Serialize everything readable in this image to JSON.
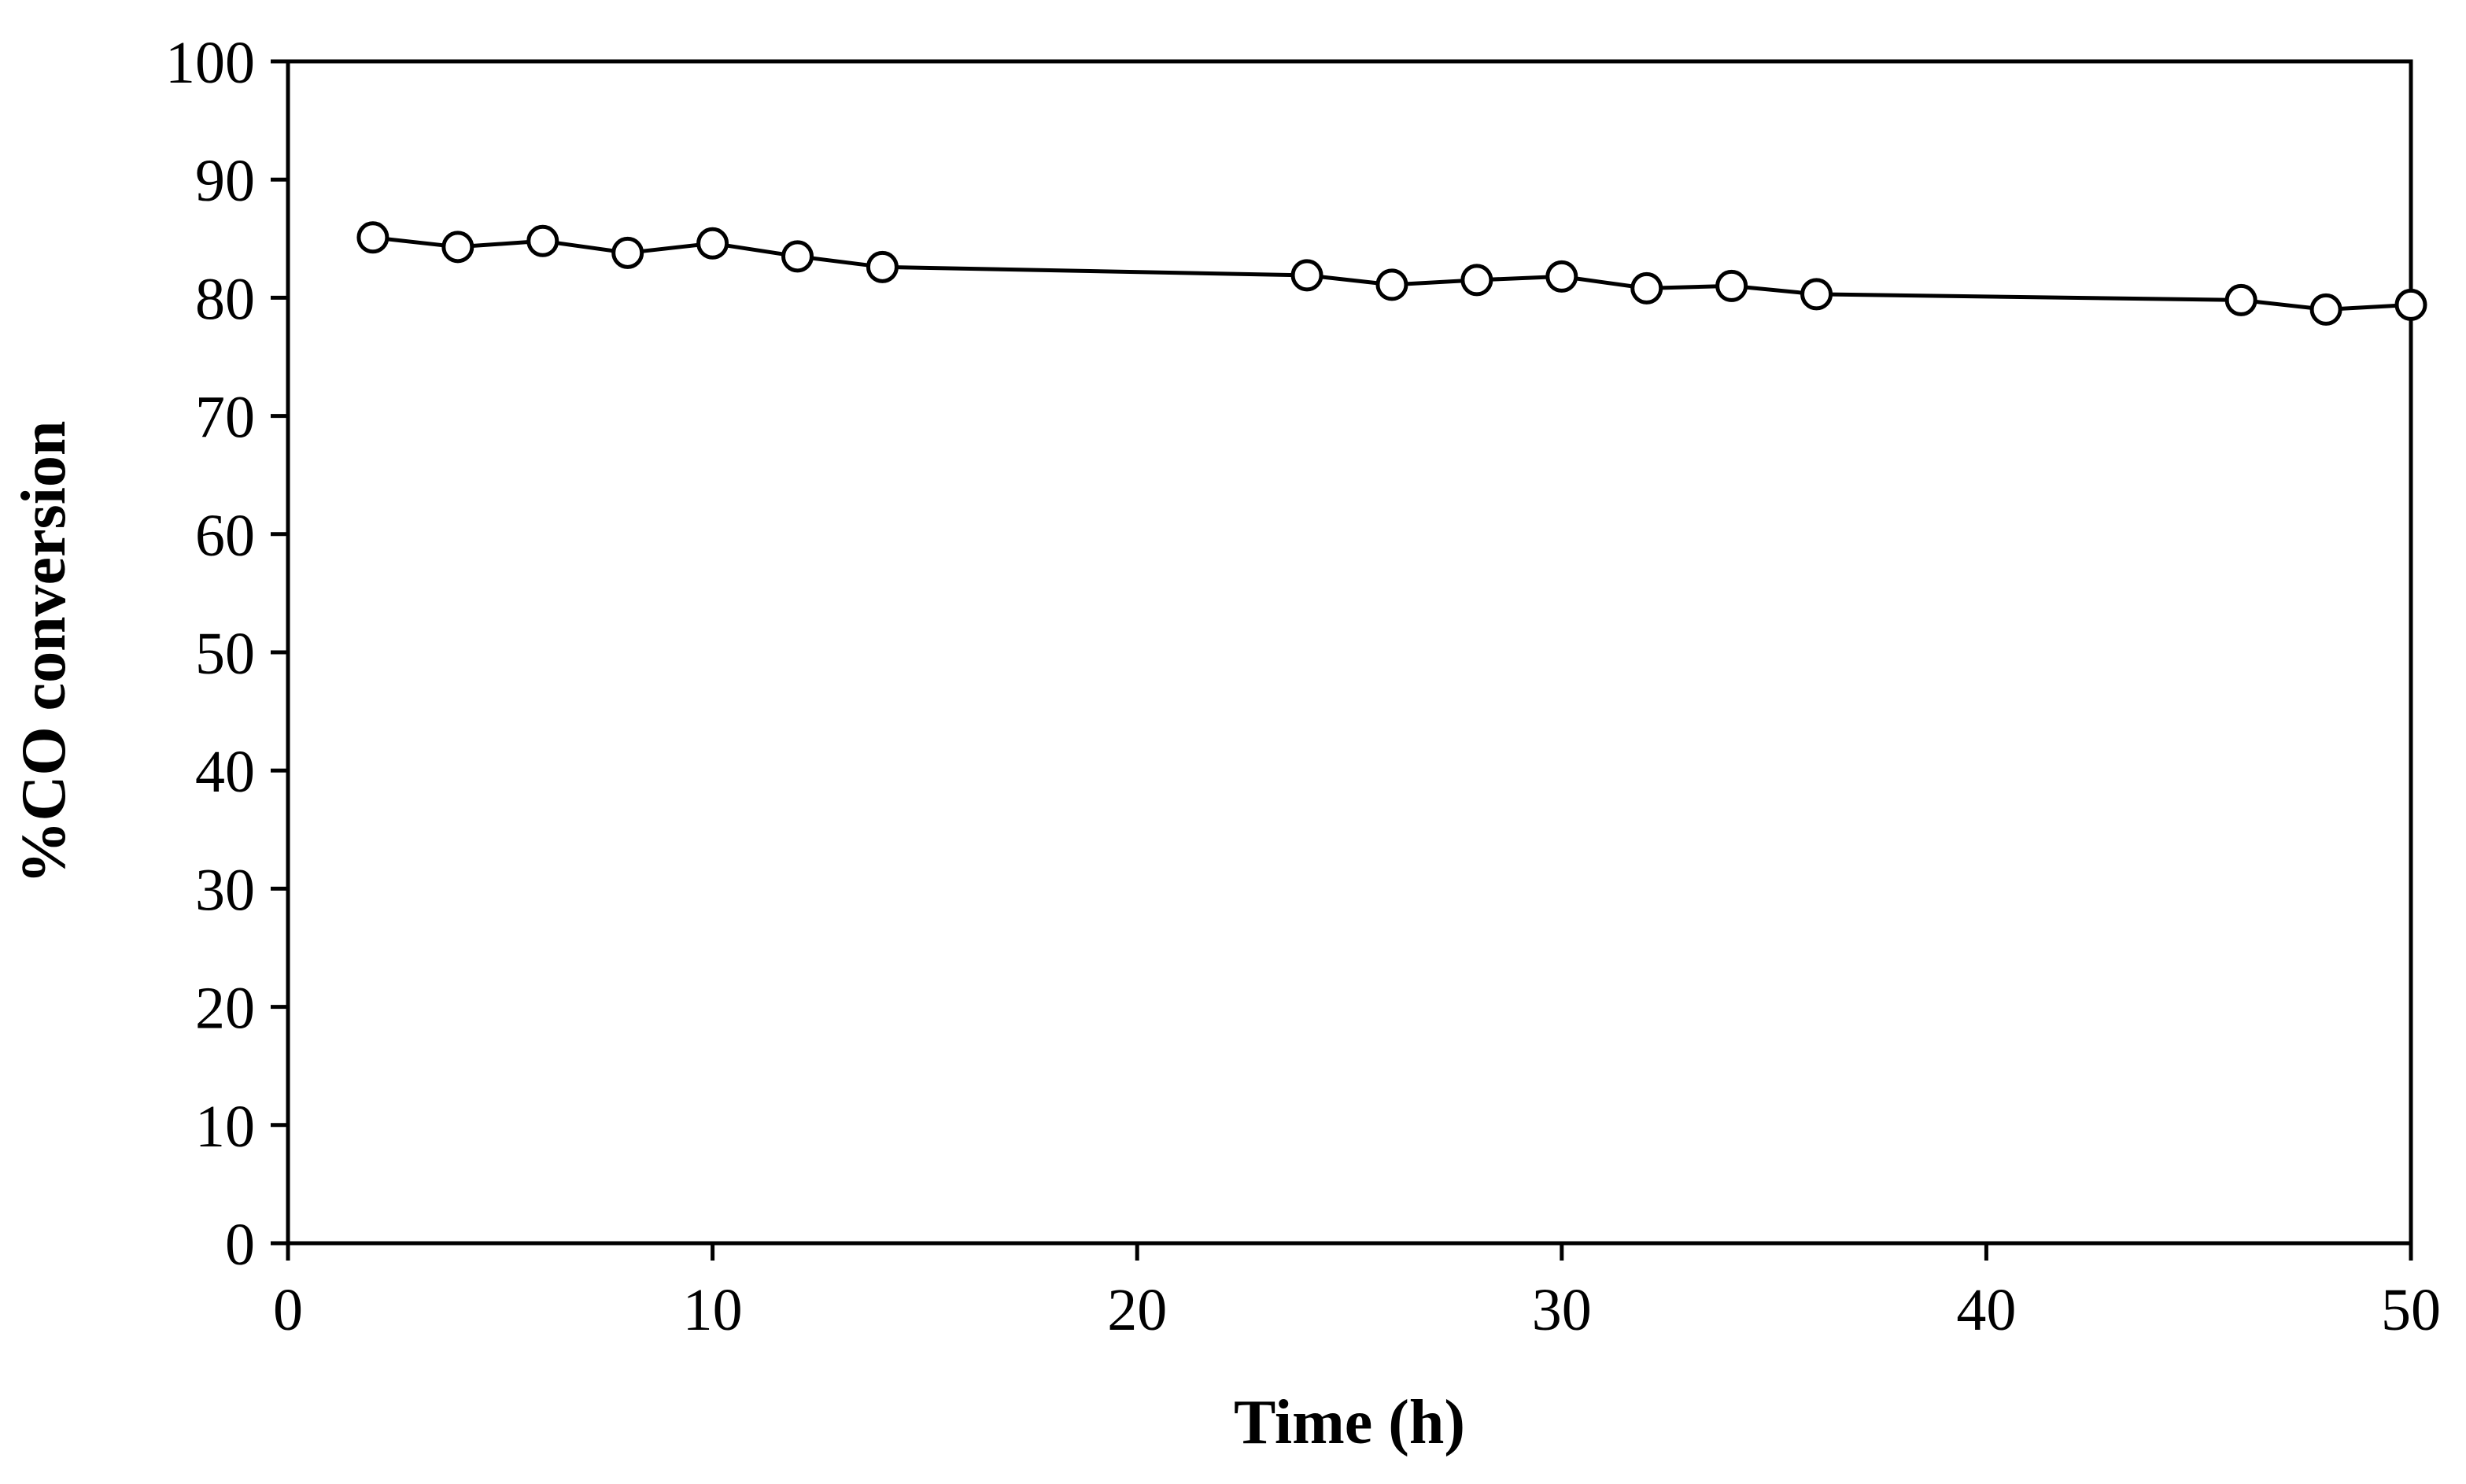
{
  "chart_data": {
    "type": "line",
    "title": "",
    "xlabel": "Time (h)",
    "ylabel": "%CO conversion",
    "xlim": [
      0,
      50
    ],
    "ylim": [
      0,
      100
    ],
    "xticks": [
      0,
      10,
      20,
      30,
      40,
      50
    ],
    "yticks": [
      0,
      10,
      20,
      30,
      40,
      50,
      60,
      70,
      80,
      90,
      100
    ],
    "grid": false,
    "legend": "none",
    "series": [
      {
        "name": "%CO conversion",
        "marker": "open-circle",
        "color": "#000000",
        "x": [
          2,
          4,
          6,
          8,
          10,
          12,
          14,
          24,
          26,
          28,
          30,
          32,
          34,
          36,
          46,
          48,
          50
        ],
        "y": [
          85.1,
          84.3,
          84.8,
          83.8,
          84.6,
          83.5,
          82.6,
          81.9,
          81.1,
          81.5,
          81.8,
          80.8,
          81.0,
          80.3,
          79.8,
          79.0,
          79.4
        ]
      }
    ]
  }
}
